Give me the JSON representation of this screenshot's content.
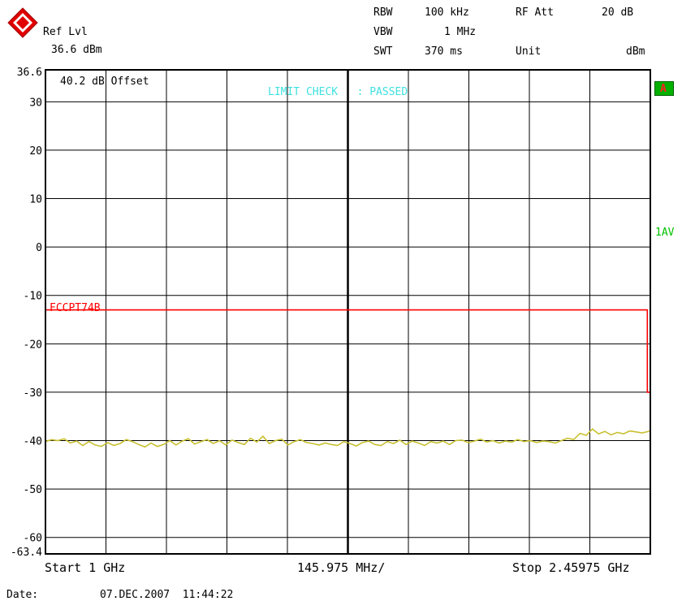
{
  "header": {
    "ref_lvl_label": "Ref Lvl",
    "ref_lvl_value": "36.6 dBm",
    "rbw_label": "RBW",
    "rbw_value": "100 kHz",
    "vbw_label": "VBW",
    "vbw_value": "1 MHz",
    "swt_label": "SWT",
    "swt_value": "370 ms",
    "rf_att_label": "RF Att",
    "rf_att_value": "20 dB",
    "unit_label": "Unit",
    "unit_value": "dBm"
  },
  "overlay": {
    "offset_text": "40.2 dB Offset",
    "limit_check_text": "LIMIT CHECK   : PASSED",
    "limit_line_label": "FCCPT74B",
    "trace_flag": "A",
    "trace_mode": "1AV",
    "limit_check_color": "#40e0e0",
    "limit_color": "#ff0000",
    "trace_color": "#c8c030"
  },
  "footer": {
    "start": "Start 1 GHz",
    "span": "145.975 MHz/",
    "stop": "Stop 2.45975 GHz",
    "date_label": "Date:",
    "date_value": "07.DEC.2007  11:44:22"
  },
  "chart_data": {
    "type": "line",
    "xlabel": "",
    "ylabel": "",
    "xlim": [
      1.0,
      2.45975
    ],
    "ylim": [
      -63.4,
      36.6
    ],
    "y_ticks": [
      30,
      20,
      10,
      0,
      -10,
      -20,
      -30,
      -40,
      -50,
      -60
    ],
    "y_tick_labels": [
      "30",
      "20",
      "10",
      "0",
      "-10",
      "-20",
      "-30",
      "-40",
      "-50",
      "-60"
    ],
    "y_top_label": "36.6",
    "y_bottom_label": "-63.4",
    "grid": true,
    "series": [
      {
        "name": "1AV",
        "x": [
          1.0,
          1.015,
          1.03,
          1.045,
          1.06,
          1.075,
          1.09,
          1.105,
          1.12,
          1.135,
          1.15,
          1.165,
          1.18,
          1.195,
          1.21,
          1.225,
          1.24,
          1.255,
          1.27,
          1.285,
          1.3,
          1.315,
          1.33,
          1.345,
          1.36,
          1.375,
          1.39,
          1.405,
          1.42,
          1.435,
          1.45,
          1.465,
          1.48,
          1.495,
          1.51,
          1.525,
          1.54,
          1.555,
          1.57,
          1.585,
          1.6,
          1.615,
          1.63,
          1.645,
          1.66,
          1.675,
          1.69,
          1.705,
          1.72,
          1.735,
          1.75,
          1.765,
          1.78,
          1.795,
          1.81,
          1.825,
          1.84,
          1.855,
          1.87,
          1.885,
          1.9,
          1.915,
          1.93,
          1.945,
          1.96,
          1.975,
          1.99,
          2.005,
          2.02,
          2.035,
          2.05,
          2.065,
          2.08,
          2.095,
          2.11,
          2.125,
          2.14,
          2.155,
          2.17,
          2.185,
          2.2,
          2.215,
          2.23,
          2.245,
          2.26,
          2.275,
          2.29,
          2.305,
          2.32,
          2.335,
          2.35,
          2.365,
          2.38,
          2.395,
          2.41,
          2.425,
          2.44,
          2.45975
        ],
        "y": [
          -40.2,
          -39.8,
          -40.0,
          -39.6,
          -40.5,
          -40.1,
          -41.0,
          -40.2,
          -40.9,
          -41.2,
          -40.4,
          -41.0,
          -40.6,
          -39.8,
          -40.2,
          -40.8,
          -41.3,
          -40.5,
          -41.2,
          -40.8,
          -40.0,
          -40.9,
          -40.1,
          -39.6,
          -40.7,
          -40.2,
          -39.8,
          -40.6,
          -40.0,
          -40.9,
          -39.9,
          -40.4,
          -40.8,
          -39.5,
          -40.3,
          -39.1,
          -40.6,
          -40.0,
          -39.7,
          -40.9,
          -40.2,
          -39.8,
          -40.4,
          -40.6,
          -40.9,
          -40.5,
          -40.8,
          -41.0,
          -40.2,
          -40.6,
          -41.1,
          -40.4,
          -40.1,
          -40.8,
          -41.0,
          -40.2,
          -40.6,
          -39.9,
          -40.8,
          -40.1,
          -40.5,
          -41.0,
          -40.2,
          -40.5,
          -40.1,
          -40.8,
          -40.0,
          -39.9,
          -40.4,
          -40.1,
          -39.7,
          -40.3,
          -40.0,
          -40.5,
          -40.1,
          -40.3,
          -39.8,
          -40.2,
          -40.0,
          -40.4,
          -40.1,
          -40.2,
          -40.5,
          -40.0,
          -39.5,
          -39.8,
          -38.5,
          -38.9,
          -37.6,
          -38.6,
          -38.1,
          -38.8,
          -38.3,
          -38.6,
          -38.0,
          -38.2,
          -38.4,
          -38.0
        ]
      },
      {
        "name": "FCCPT74B",
        "x": [
          1.0,
          2.4525,
          2.4525,
          2.45975
        ],
        "y": [
          -13.0,
          -13.0,
          -30.0,
          -30.0
        ]
      }
    ]
  }
}
